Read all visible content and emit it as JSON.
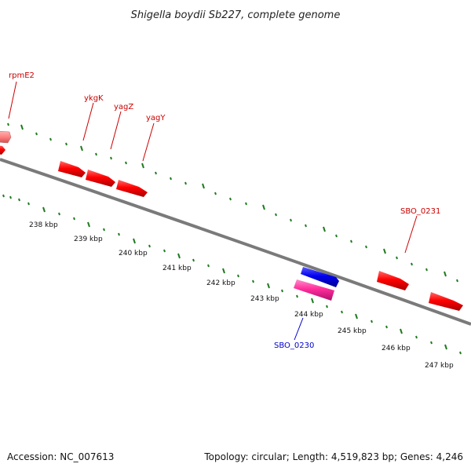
{
  "map": {
    "title": "Shigella boydii Sb227, complete genome",
    "accession": "Accession: NC_007613",
    "summary": "Topology: circular; Length: 4,519,823 bp; Genes: 4,246",
    "colors": {
      "backbone": "#7a7a7a",
      "ticks": "#1f7a1f",
      "forward_gene": "#ff0000",
      "reverse_gene_blue": "#0000ee",
      "pink_gene": "#ff2d9b",
      "light_gene": "#ff8080",
      "label_red": "#cc0000",
      "label_blue": "#0000cc"
    },
    "scale_labels": [
      "238 kbp",
      "239 kbp",
      "240 kbp",
      "241 kbp",
      "242 kbp",
      "243 kbp",
      "244 kbp",
      "245 kbp",
      "246 kbp",
      "247 kbp"
    ],
    "gene_labels": [
      "rpmE2",
      "ykgK",
      "yagZ",
      "yagY",
      "SBO_0231",
      "SBO_0230"
    ]
  }
}
